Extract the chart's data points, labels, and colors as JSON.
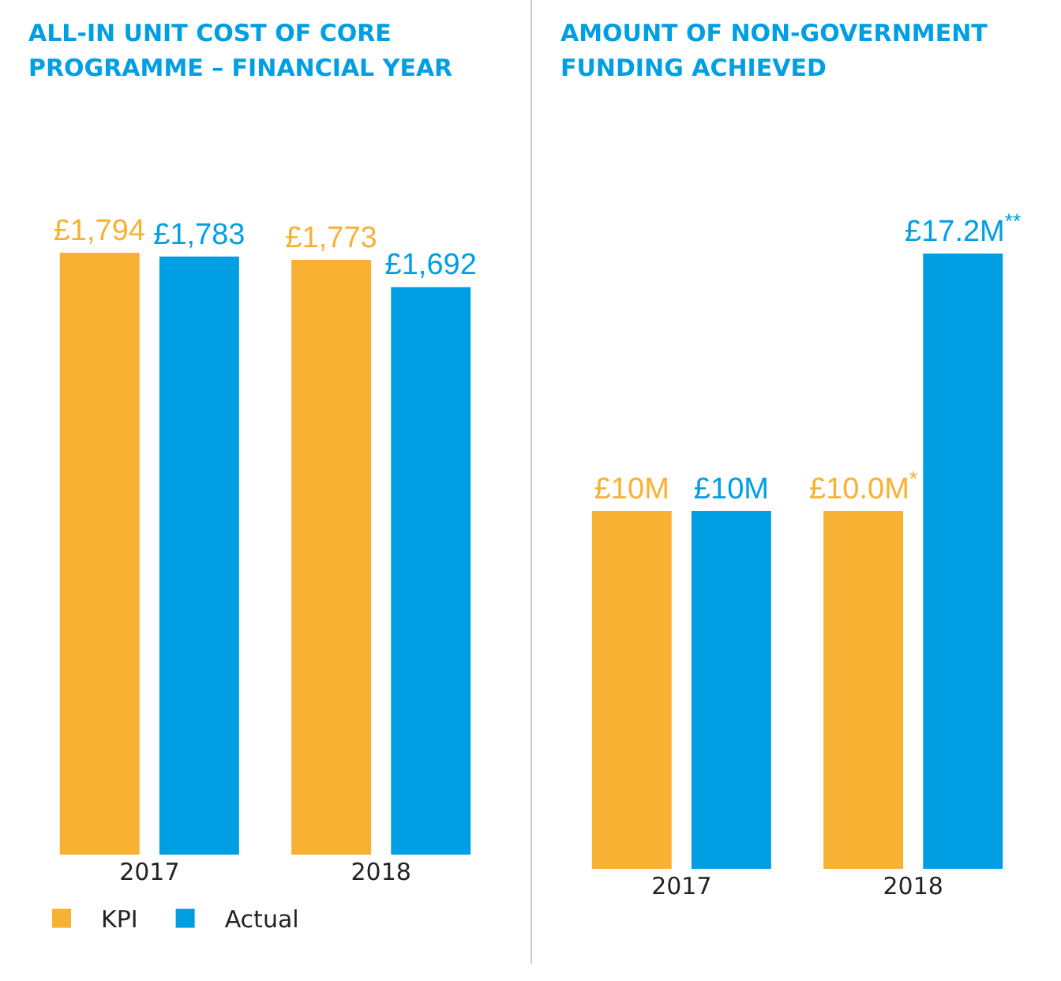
{
  "chart_data": [
    {
      "type": "bar",
      "title": "ALL-IN UNIT COST OF CORE PROGRAMME – FINANCIAL YEAR",
      "categories": [
        "2017",
        "2018"
      ],
      "series": [
        {
          "name": "KPI",
          "color": "#f8b133",
          "values": [
            1794,
            1773
          ],
          "value_labels": [
            "£1,794",
            "£1,773"
          ]
        },
        {
          "name": "Actual",
          "color": "#009fe3",
          "values": [
            1783,
            1692
          ],
          "value_labels": [
            "£1,783",
            "£1,692"
          ]
        }
      ],
      "tick_labels": "x",
      "grid": false,
      "legend": "bottom"
    },
    {
      "type": "bar",
      "title": "AMOUNT OF NON-GOVERNMENT FUNDING ACHIEVED",
      "categories": [
        "2017",
        "2018"
      ],
      "series": [
        {
          "color": "#f8b133",
          "values": [
            10,
            10.0
          ],
          "value_labels": [
            "£10M",
            "£10.0M$^{*}$"
          ]
        },
        {
          "color": "#009fe3",
          "values": [
            10,
            17.2
          ],
          "value_labels": [
            "£10M",
            "£17.2M$^{**}$"
          ]
        }
      ],
      "tick_labels": "x",
      "grid": false
    }
  ]
}
